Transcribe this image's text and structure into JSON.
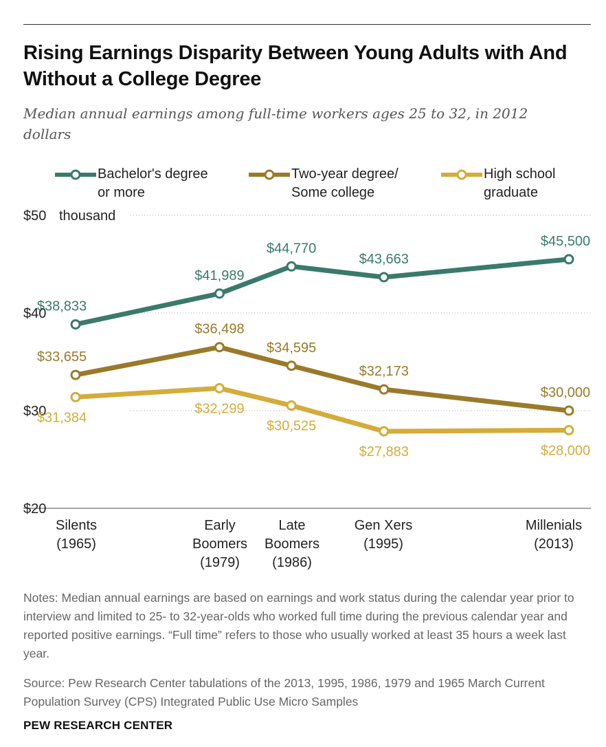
{
  "title": "Rising Earnings Disparity Between Young Adults with And Without a College Degree",
  "subtitle": "Median annual earnings among full-time workers ages 25 to 32, in 2012 dollars",
  "colors": {
    "bachelor": "#3a7a6b",
    "two_year": "#9a7a2a",
    "high_school": "#d4ac3a"
  },
  "legend": [
    {
      "key": "bachelor",
      "label": "Bachelor's degree\nor more"
    },
    {
      "key": "two_year",
      "label": "Two-year degree/\nSome college"
    },
    {
      "key": "high_school",
      "label": "High school\ngraduate"
    }
  ],
  "chart_data": {
    "type": "line",
    "x": [
      1965,
      1979,
      1986,
      1995,
      2013
    ],
    "categories": [
      {
        "name": "Silents",
        "year": "(1965)"
      },
      {
        "name": "Early\nBoomers",
        "year": "(1979)"
      },
      {
        "name": "Late\nBoomers",
        "year": "(1986)"
      },
      {
        "name": "Gen Xers",
        "year": "(1995)"
      },
      {
        "name": "Millenials",
        "year": "(2013)"
      }
    ],
    "ylim": [
      20000,
      50000
    ],
    "yticks": [
      {
        "value": 50000,
        "label": "$50",
        "unit": "thousand"
      },
      {
        "value": 40000,
        "label": "$40"
      },
      {
        "value": 30000,
        "label": "$30"
      },
      {
        "value": 20000,
        "label": "$20"
      }
    ],
    "series": [
      {
        "key": "bachelor",
        "name": "Bachelor's degree or more",
        "values": [
          38833,
          41989,
          44770,
          43663,
          45500
        ],
        "labels": [
          "$38,833",
          "$41,989",
          "$44,770",
          "$43,663",
          "$45,500"
        ],
        "label_pos": [
          "above",
          "above",
          "above",
          "above",
          "above"
        ]
      },
      {
        "key": "two_year",
        "name": "Two-year degree/Some college",
        "values": [
          33655,
          36498,
          34595,
          32173,
          30000
        ],
        "labels": [
          "$33,655",
          "$36,498",
          "$34,595",
          "$32,173",
          "$30,000"
        ],
        "label_pos": [
          "above",
          "above",
          "above",
          "above",
          "above"
        ]
      },
      {
        "key": "high_school",
        "name": "High school graduate",
        "values": [
          31384,
          32299,
          30525,
          27883,
          28000
        ],
        "labels": [
          "$31,384",
          "$32,299",
          "$30,525",
          "$27,883",
          "$28,000"
        ],
        "label_pos": [
          "below",
          "below",
          "below",
          "below",
          "below"
        ]
      }
    ],
    "grid": true
  },
  "notes": "Notes: Median annual earnings are based on earnings and work status during the calendar year prior to interview and limited to 25- to 32-year-olds who worked full time during the previous calendar year and reported positive earnings. “Full time” refers to those who usually worked at least 35 hours a week last year.",
  "source": "Source: Pew Research Center tabulations of the 2013, 1995, 1986, 1979 and 1965 March Current Population Survey (CPS) Integrated Public Use Micro Samples",
  "footer": "PEW RESEARCH CENTER"
}
